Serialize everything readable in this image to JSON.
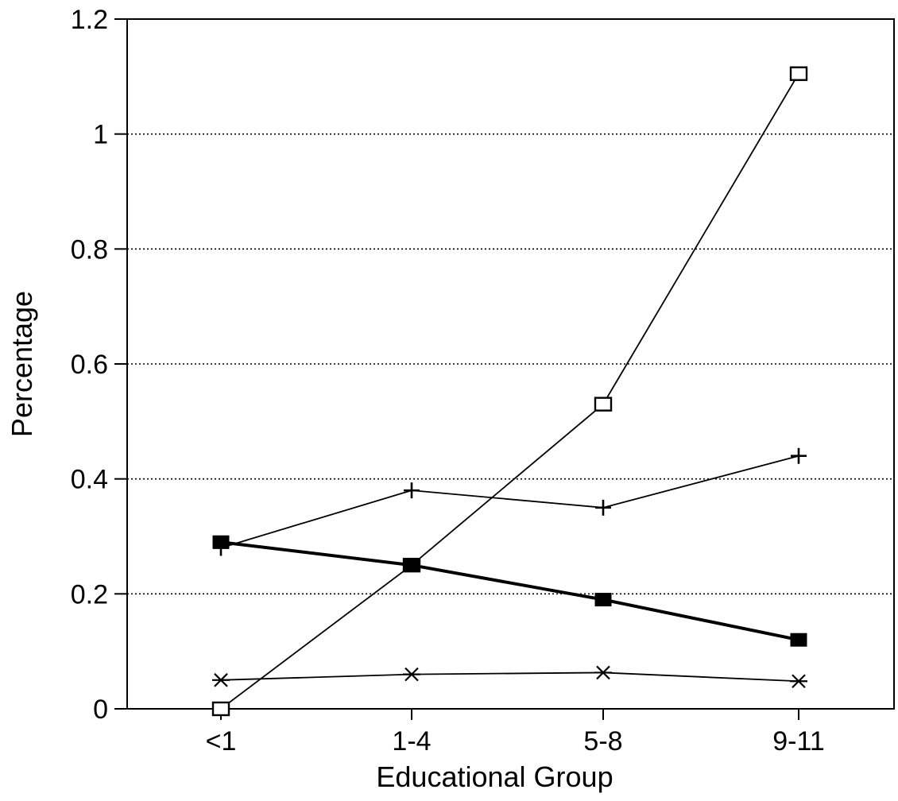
{
  "chart_data": {
    "type": "line",
    "categories": [
      "<1",
      "1-4",
      "5-8",
      "9-11"
    ],
    "xlabel": "Educational Group",
    "ylabel": "Percentage",
    "ylim": [
      0,
      1.2
    ],
    "yticks": [
      "0",
      "0.2",
      "0.4",
      "0.6",
      "0.8",
      "1",
      "1.2"
    ],
    "grid": "horizontal dotted",
    "legend": "none",
    "series": [
      {
        "marker": "open-square",
        "values": [
          0.0,
          0.25,
          0.53,
          1.105
        ]
      },
      {
        "marker": "plus",
        "values": [
          0.28,
          0.38,
          0.35,
          0.44
        ]
      },
      {
        "marker": "filled-square",
        "values": [
          0.29,
          0.25,
          0.19,
          0.12
        ]
      },
      {
        "marker": "asterisk",
        "values": [
          0.05,
          0.06,
          0.063,
          0.048
        ]
      }
    ]
  },
  "colors": {
    "ink": "#000000",
    "background": "#ffffff"
  }
}
